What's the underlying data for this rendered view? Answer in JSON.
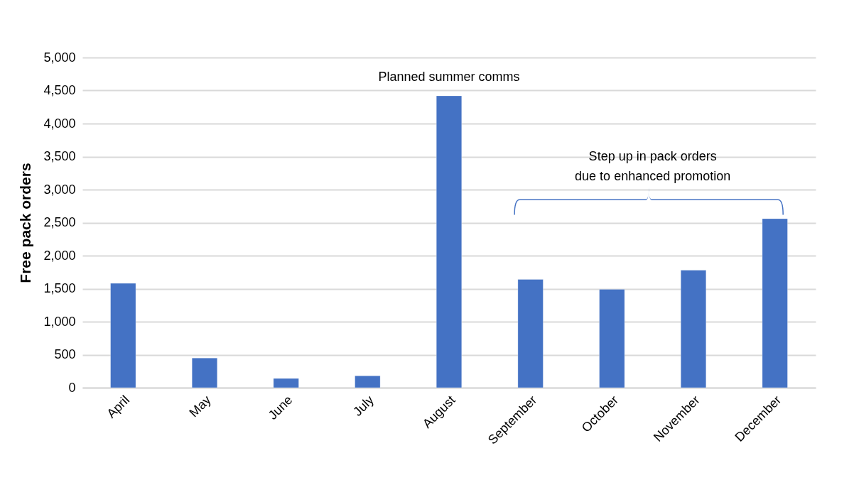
{
  "chart_data": {
    "type": "bar",
    "ylabel": "Free pack orders",
    "categories": [
      "April",
      "May",
      "June",
      "July",
      "August",
      "September",
      "October",
      "November",
      "December"
    ],
    "series": [
      {
        "color": "#4472c4",
        "values": [
          1580,
          450,
          140,
          180,
          4420,
          1640,
          1490,
          1780,
          2560
        ]
      }
    ],
    "ylim": [
      0,
      5000
    ],
    "yticks": [
      0,
      {
        "value": 500,
        "label": "500"
      },
      {
        "value": 1000,
        "label": "1,000"
      },
      {
        "value": 1500,
        "label": "1,500"
      },
      {
        "value": 2000,
        "label": "2,000"
      },
      {
        "value": 2500,
        "label": "2,500"
      },
      {
        "value": 3000,
        "label": "3,000"
      },
      {
        "value": 3500,
        "label": "3,500"
      },
      {
        "value": 4000,
        "label": "4,000"
      },
      {
        "value": 4500,
        "label": "4,500"
      },
      {
        "value": 5000,
        "label": "5,000"
      }
    ],
    "grid": "y",
    "annotations": [
      "Planned summer comms",
      "Step up in pack orders\ndue to enhanced promotion"
    ]
  }
}
